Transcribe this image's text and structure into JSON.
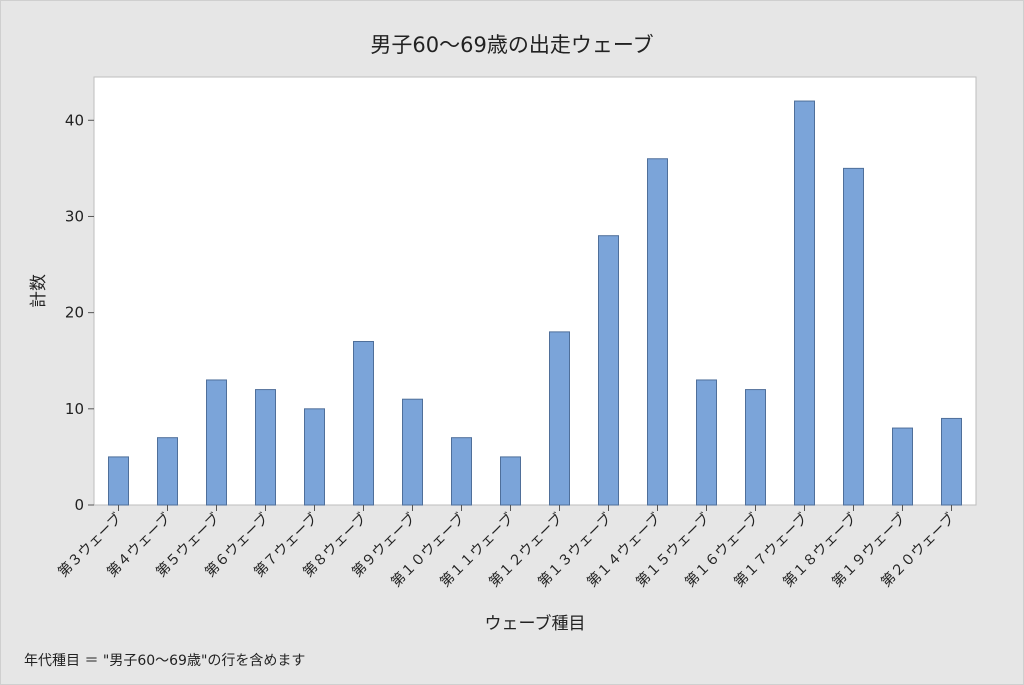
{
  "chart_data": {
    "type": "bar",
    "title": "男子60～69歳の出走ウェーブ",
    "xlabel": "ウェーブ種目",
    "ylabel": "計数",
    "ylim": [
      0,
      44.5
    ],
    "yticks": [
      0,
      10,
      20,
      30,
      40
    ],
    "categories": [
      "第３ウェーブ",
      "第４ウェーブ",
      "第５ウェーブ",
      "第６ウェーブ",
      "第７ウェーブ",
      "第８ウェーブ",
      "第９ウェーブ",
      "第１０ウェーブ",
      "第１１ウェーブ",
      "第１２ウェーブ",
      "第１３ウェーブ",
      "第１４ウェーブ",
      "第１５ウェーブ",
      "第１６ウェーブ",
      "第１７ウェーブ",
      "第１８ウェーブ",
      "第１９ウェーブ",
      "第２０ウェーブ"
    ],
    "values": [
      5,
      7,
      13,
      12,
      10,
      17,
      11,
      7,
      5,
      18,
      28,
      36,
      13,
      12,
      42,
      35,
      8,
      9
    ],
    "bar_color": "#7ba4d9",
    "footnote": "年代種目 ＝ \"男子60～69歳\"の行を含めます"
  }
}
